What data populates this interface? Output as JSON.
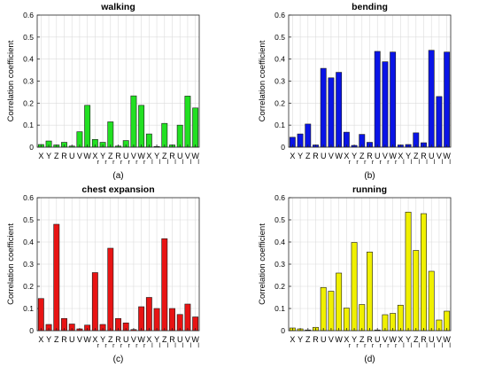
{
  "chart_data": [
    {
      "type": "bar",
      "title": "walking",
      "ylabel": "Correlation coefficient",
      "ylim": [
        0,
        0.6
      ],
      "yticks": [
        "0",
        "0.1",
        "0.2",
        "0.3",
        "0.4",
        "0.5",
        "0.6"
      ],
      "grid": true,
      "color": "#22e022",
      "panel_label": "(a)",
      "categories": [
        {
          "main": "X",
          "sub": ""
        },
        {
          "main": "Y",
          "sub": ""
        },
        {
          "main": "Z",
          "sub": ""
        },
        {
          "main": "R",
          "sub": ""
        },
        {
          "main": "U",
          "sub": ""
        },
        {
          "main": "V",
          "sub": ""
        },
        {
          "main": "W",
          "sub": ""
        },
        {
          "main": "X",
          "sub": "r"
        },
        {
          "main": "Y",
          "sub": "r"
        },
        {
          "main": "Z",
          "sub": "r"
        },
        {
          "main": "R",
          "sub": "r"
        },
        {
          "main": "U",
          "sub": "r"
        },
        {
          "main": "V",
          "sub": "r"
        },
        {
          "main": "W",
          "sub": "r"
        },
        {
          "main": "X",
          "sub": "l"
        },
        {
          "main": "Y",
          "sub": "l"
        },
        {
          "main": "Z",
          "sub": "l"
        },
        {
          "main": "R",
          "sub": "l"
        },
        {
          "main": "U",
          "sub": "l"
        },
        {
          "main": "V",
          "sub": "l"
        },
        {
          "main": "W",
          "sub": "l"
        }
      ],
      "values": [
        0.012,
        0.028,
        0.01,
        0.022,
        0.005,
        0.07,
        0.19,
        0.035,
        0.022,
        0.115,
        0.005,
        0.03,
        0.233,
        0.19,
        0.06,
        0.003,
        0.108,
        0.01,
        0.1,
        0.232,
        0.178
      ]
    },
    {
      "type": "bar",
      "title": "bending",
      "ylabel": "Correlation coefficient",
      "ylim": [
        0,
        0.6
      ],
      "yticks": [
        "0",
        "0.1",
        "0.2",
        "0.3",
        "0.4",
        "0.5",
        "0.6"
      ],
      "grid": true,
      "color": "#0a14e6",
      "panel_label": "(b)",
      "categories": [
        {
          "main": "X",
          "sub": ""
        },
        {
          "main": "Y",
          "sub": ""
        },
        {
          "main": "Z",
          "sub": ""
        },
        {
          "main": "R",
          "sub": ""
        },
        {
          "main": "U",
          "sub": ""
        },
        {
          "main": "V",
          "sub": ""
        },
        {
          "main": "W",
          "sub": ""
        },
        {
          "main": "X",
          "sub": "r"
        },
        {
          "main": "Y",
          "sub": "r"
        },
        {
          "main": "Z",
          "sub": "r"
        },
        {
          "main": "R",
          "sub": "r"
        },
        {
          "main": "U",
          "sub": "r"
        },
        {
          "main": "V",
          "sub": "r"
        },
        {
          "main": "W",
          "sub": "r"
        },
        {
          "main": "X",
          "sub": "l"
        },
        {
          "main": "Y",
          "sub": "l"
        },
        {
          "main": "Z",
          "sub": "l"
        },
        {
          "main": "R",
          "sub": "l"
        },
        {
          "main": "U",
          "sub": "l"
        },
        {
          "main": "V",
          "sub": "l"
        },
        {
          "main": "W",
          "sub": "l"
        }
      ],
      "values": [
        0.045,
        0.06,
        0.105,
        0.01,
        0.358,
        0.315,
        0.34,
        0.068,
        0.008,
        0.058,
        0.022,
        0.435,
        0.388,
        0.432,
        0.01,
        0.012,
        0.065,
        0.02,
        0.44,
        0.23,
        0.432
      ]
    },
    {
      "type": "bar",
      "title": "chest expansion",
      "ylabel": "Correlation coefficient",
      "ylim": [
        0,
        0.6
      ],
      "yticks": [
        "0",
        "0.1",
        "0.2",
        "0.3",
        "0.4",
        "0.5",
        "0.6"
      ],
      "grid": true,
      "color": "#e81414",
      "panel_label": "(c)",
      "categories": [
        {
          "main": "X",
          "sub": ""
        },
        {
          "main": "Y",
          "sub": ""
        },
        {
          "main": "Z",
          "sub": ""
        },
        {
          "main": "R",
          "sub": ""
        },
        {
          "main": "U",
          "sub": ""
        },
        {
          "main": "V",
          "sub": ""
        },
        {
          "main": "W",
          "sub": ""
        },
        {
          "main": "X",
          "sub": "r"
        },
        {
          "main": "Y",
          "sub": "r"
        },
        {
          "main": "Z",
          "sub": "r"
        },
        {
          "main": "R",
          "sub": "r"
        },
        {
          "main": "U",
          "sub": "r"
        },
        {
          "main": "V",
          "sub": "r"
        },
        {
          "main": "W",
          "sub": "r"
        },
        {
          "main": "X",
          "sub": "l"
        },
        {
          "main": "Y",
          "sub": "l"
        },
        {
          "main": "Z",
          "sub": "l"
        },
        {
          "main": "R",
          "sub": "l"
        },
        {
          "main": "U",
          "sub": "l"
        },
        {
          "main": "V",
          "sub": "l"
        },
        {
          "main": "W",
          "sub": "l"
        }
      ],
      "values": [
        0.145,
        0.028,
        0.48,
        0.055,
        0.03,
        0.008,
        0.025,
        0.262,
        0.028,
        0.372,
        0.055,
        0.035,
        0.005,
        0.108,
        0.15,
        0.1,
        0.415,
        0.1,
        0.073,
        0.12,
        0.062
      ]
    },
    {
      "type": "bar",
      "title": "running",
      "ylabel": "Correlation coefficient",
      "ylim": [
        0,
        0.6
      ],
      "yticks": [
        "0",
        "0.1",
        "0.2",
        "0.3",
        "0.4",
        "0.5",
        "0.6"
      ],
      "grid": true,
      "color": "#f0f000",
      "panel_label": "(d)",
      "categories": [
        {
          "main": "X",
          "sub": ""
        },
        {
          "main": "Y",
          "sub": ""
        },
        {
          "main": "Z",
          "sub": ""
        },
        {
          "main": "R",
          "sub": ""
        },
        {
          "main": "U",
          "sub": ""
        },
        {
          "main": "V",
          "sub": ""
        },
        {
          "main": "W",
          "sub": ""
        },
        {
          "main": "X",
          "sub": "r"
        },
        {
          "main": "Y",
          "sub": "r"
        },
        {
          "main": "Z",
          "sub": "r"
        },
        {
          "main": "R",
          "sub": "r"
        },
        {
          "main": "U",
          "sub": "r"
        },
        {
          "main": "V",
          "sub": "r"
        },
        {
          "main": "W",
          "sub": "r"
        },
        {
          "main": "X",
          "sub": "l"
        },
        {
          "main": "Y",
          "sub": "l"
        },
        {
          "main": "Z",
          "sub": "l"
        },
        {
          "main": "R",
          "sub": "l"
        },
        {
          "main": "U",
          "sub": "l"
        },
        {
          "main": "V",
          "sub": "l"
        },
        {
          "main": "W",
          "sub": "l"
        }
      ],
      "values": [
        0.012,
        0.008,
        0.003,
        0.015,
        0.195,
        0.178,
        0.26,
        0.102,
        0.398,
        0.118,
        0.355,
        0.003,
        0.072,
        0.078,
        0.115,
        0.535,
        0.362,
        0.528,
        0.268,
        0.048,
        0.088
      ]
    }
  ]
}
